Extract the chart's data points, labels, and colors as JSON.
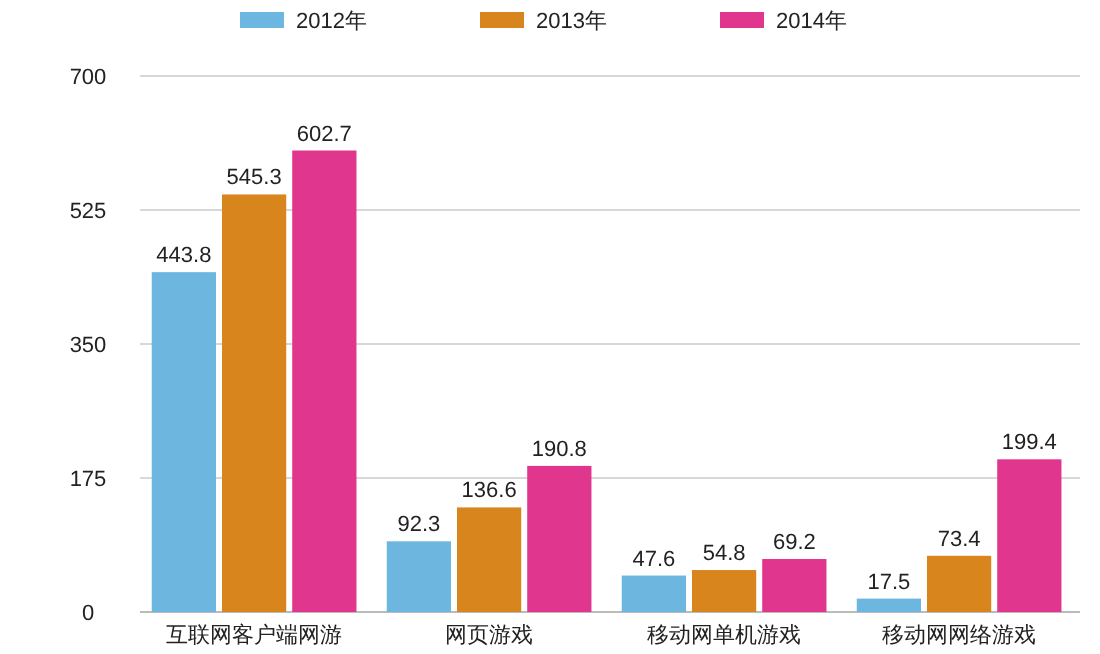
{
  "chart_data": {
    "type": "bar",
    "categories": [
      "互联网客户端网游",
      "网页游戏",
      "移动网单机游戏",
      "移动网网络游戏"
    ],
    "series": [
      {
        "name": "2012年",
        "color": "#6cb6e0",
        "values": [
          443.8,
          92.3,
          47.6,
          17.5
        ]
      },
      {
        "name": "2013年",
        "color": "#d9851e",
        "values": [
          545.3,
          136.6,
          54.8,
          73.4
        ]
      },
      {
        "name": "2014年",
        "color": "#e0368d",
        "values": [
          602.7,
          190.8,
          69.2,
          199.4
        ]
      }
    ],
    "ylim": [
      0,
      700
    ],
    "yticks": [
      0,
      175,
      350,
      525,
      700
    ],
    "grid": "y",
    "legend": "top",
    "data_labels": true
  }
}
